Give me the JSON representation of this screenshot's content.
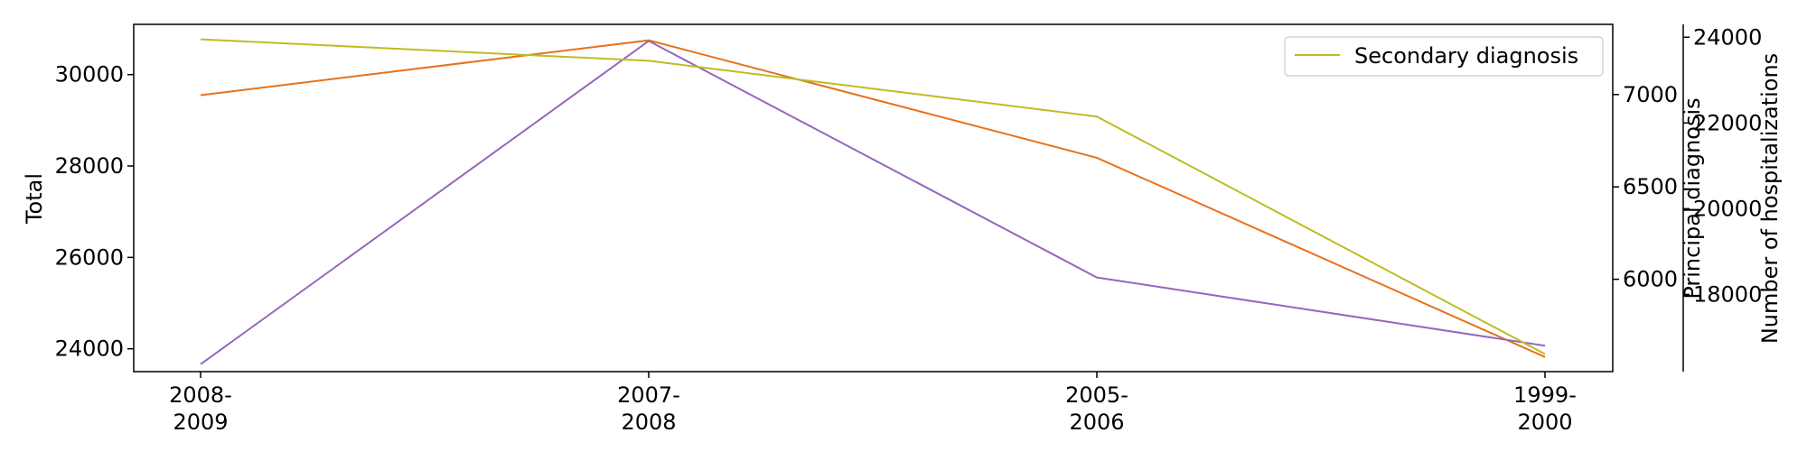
{
  "chart_data": {
    "type": "line",
    "categories": [
      "2008-\n2009",
      "2007-\n2008",
      "2005-\n2006",
      "1999-\n2000"
    ],
    "axes": {
      "left": {
        "label": "Total",
        "ylim": [
          23500,
          31100
        ],
        "ticks": [
          24000,
          26000,
          28000,
          30000
        ]
      },
      "right1": {
        "label": "Principal diagnosis",
        "ylim": [
          5500,
          7380
        ],
        "ticks": [
          6000,
          6500,
          7000
        ]
      },
      "right2": {
        "label": "Number of hospitalizations",
        "ylim": [
          16200,
          24300
        ],
        "ticks": [
          18000,
          20000,
          22000,
          24000
        ]
      }
    },
    "series": [
      {
        "axis": "left",
        "color": "#e8711a",
        "values": [
          29550,
          30750,
          28180,
          23820
        ]
      },
      {
        "axis": "right1",
        "color": "#9467bd",
        "values": [
          5540,
          7290,
          6010,
          5640
        ]
      },
      {
        "name": "Secondary diagnosis",
        "axis": "right2",
        "color": "#bcbd22",
        "values": [
          23950,
          23450,
          22150,
          16610
        ]
      }
    ],
    "legend": {
      "position": "top-right",
      "entries": [
        "Secondary diagnosis"
      ]
    },
    "grid": false
  }
}
